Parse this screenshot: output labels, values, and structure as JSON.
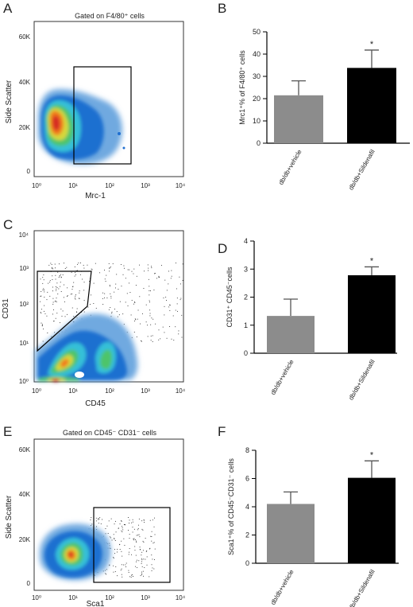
{
  "colors": {
    "vehicle": "#8c8c8c",
    "sildenafil": "#000000",
    "gate": "#000000"
  },
  "panels": {
    "A": {
      "letter": "A",
      "title": "Gated on F4/80⁺ cells",
      "xlabel": "Mrc-1",
      "ylabel": "Side Scatter",
      "xticks": [
        "10⁰",
        "10¹",
        "10²",
        "10³",
        "10⁴"
      ],
      "yticks": [
        "0",
        "20K",
        "40K",
        "60K"
      ]
    },
    "C": {
      "letter": "C",
      "title": "",
      "xlabel": "CD45",
      "ylabel": "CD31",
      "xticks": [
        "10⁰",
        "10¹",
        "10²",
        "10³",
        "10⁴"
      ],
      "yticks": [
        "10⁰",
        "10¹",
        "10²",
        "10³",
        "10⁴"
      ]
    },
    "E": {
      "letter": "E",
      "title": "Gated on CD45⁻ CD31⁻ cells",
      "xlabel": "Sca1",
      "ylabel": "Side Scatter",
      "xticks": [
        "10⁰",
        "10¹",
        "10²",
        "10³",
        "10⁴"
      ],
      "yticks": [
        "0",
        "20K",
        "40K",
        "60K"
      ]
    }
  },
  "chart_data": [
    {
      "type": "bar",
      "panel": "B",
      "ylabel": "Mrc1⁺% of F4/80⁺ cells",
      "categories": [
        "db/db+vehicle",
        "db/db+Sildenafil"
      ],
      "values": [
        21.5,
        33.8
      ],
      "errors": [
        6.5,
        8.0
      ],
      "ylim": [
        0,
        50
      ],
      "yticks": [
        0,
        10,
        20,
        30,
        40,
        50
      ],
      "significance": [
        "",
        "*"
      ]
    },
    {
      "type": "bar",
      "panel": "D",
      "ylabel": "CD31⁺ CD45⁻cells",
      "categories": [
        "db/db+vehicle",
        "db/db+Sildenafil"
      ],
      "values": [
        1.33,
        2.78
      ],
      "errors": [
        0.6,
        0.3
      ],
      "ylim": [
        0,
        4
      ],
      "yticks": [
        0,
        1,
        2,
        3,
        4
      ],
      "significance": [
        "",
        "*"
      ]
    },
    {
      "type": "bar",
      "panel": "F",
      "ylabel": "Sca1⁺% of CD45⁻CD31⁻ cells",
      "categories": [
        "db/db+vehicle",
        "db/db+Sildenafil"
      ],
      "values": [
        4.2,
        6.05
      ],
      "errors": [
        0.85,
        1.2
      ],
      "ylim": [
        0,
        8
      ],
      "yticks": [
        0,
        2,
        4,
        6,
        8
      ],
      "significance": [
        "",
        "*"
      ]
    }
  ]
}
